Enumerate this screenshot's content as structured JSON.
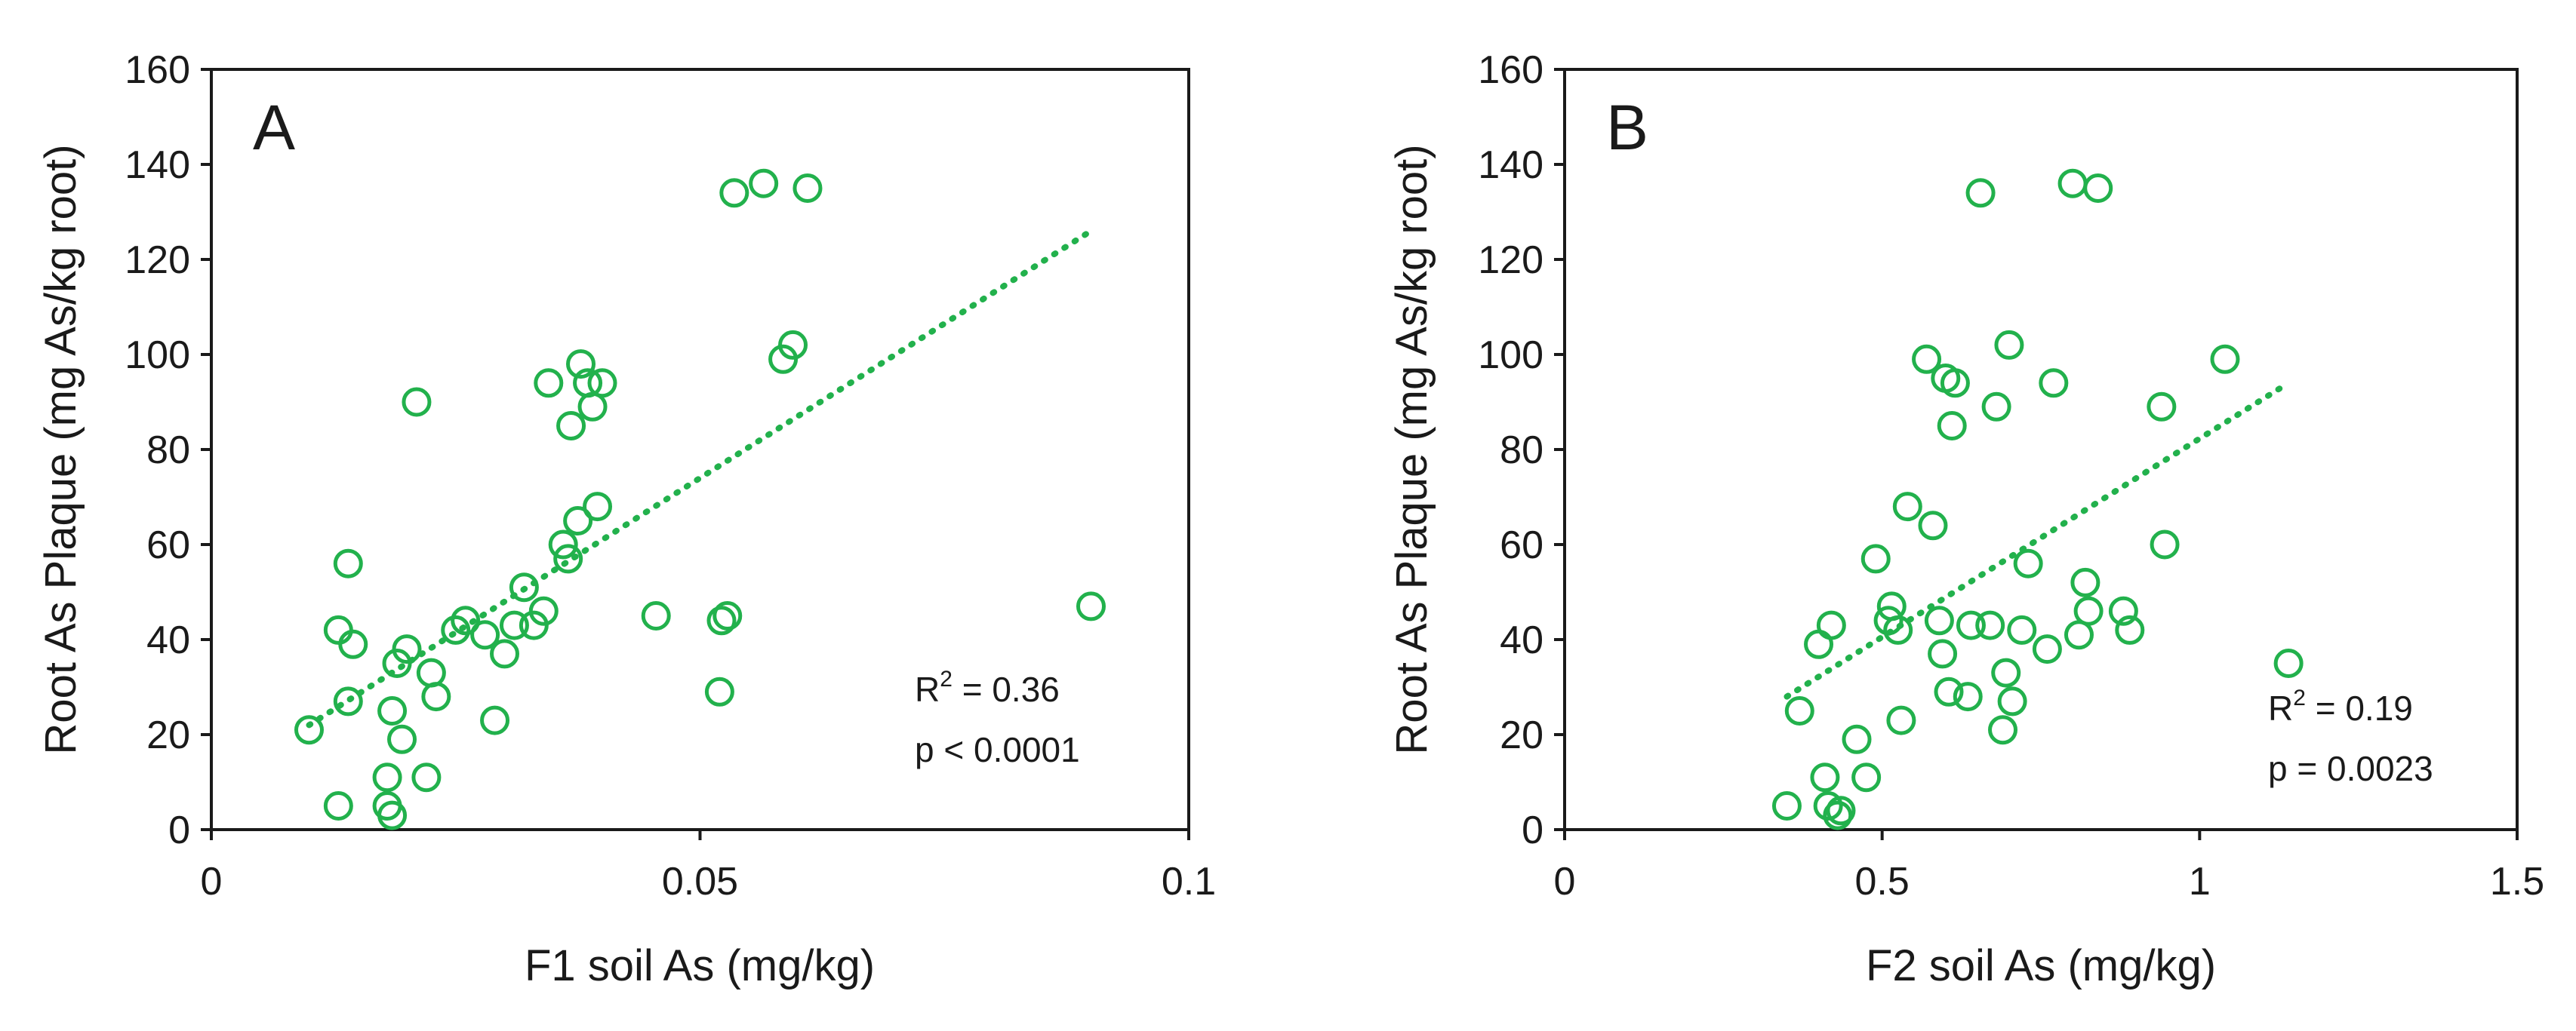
{
  "chart_data": [
    {
      "type": "scatter",
      "panel_label": "A",
      "xlabel": "F1 soil As (mg/kg)",
      "ylabel": "Root As Plaque (mg As/kg root)",
      "xlim": [
        0,
        0.1
      ],
      "ylim": [
        0,
        160
      ],
      "xticks": [
        0,
        0.05,
        0.1
      ],
      "xtick_labels": [
        "0",
        "0.05",
        "0.1"
      ],
      "yticks": [
        0,
        20,
        40,
        60,
        80,
        100,
        120,
        140,
        160
      ],
      "ytick_labels": [
        "0",
        "20",
        "40",
        "60",
        "80",
        "100",
        "120",
        "140",
        "160"
      ],
      "grid": false,
      "marker_color": "#22b14c",
      "points": [
        [
          0.01,
          21
        ],
        [
          0.013,
          42
        ],
        [
          0.013,
          5
        ],
        [
          0.014,
          27
        ],
        [
          0.014,
          56
        ],
        [
          0.0145,
          39
        ],
        [
          0.018,
          11
        ],
        [
          0.018,
          5
        ],
        [
          0.0185,
          3
        ],
        [
          0.0185,
          25
        ],
        [
          0.019,
          35
        ],
        [
          0.0195,
          19
        ],
        [
          0.02,
          38
        ],
        [
          0.021,
          90
        ],
        [
          0.022,
          11
        ],
        [
          0.0225,
          33
        ],
        [
          0.023,
          28
        ],
        [
          0.025,
          42
        ],
        [
          0.026,
          44
        ],
        [
          0.028,
          41
        ],
        [
          0.029,
          23
        ],
        [
          0.03,
          37
        ],
        [
          0.031,
          43
        ],
        [
          0.032,
          51
        ],
        [
          0.033,
          43
        ],
        [
          0.034,
          46
        ],
        [
          0.0345,
          94
        ],
        [
          0.036,
          60
        ],
        [
          0.0365,
          57
        ],
        [
          0.0368,
          85
        ],
        [
          0.0375,
          65
        ],
        [
          0.0378,
          98
        ],
        [
          0.0385,
          94
        ],
        [
          0.039,
          89
        ],
        [
          0.0395,
          68
        ],
        [
          0.04,
          94
        ],
        [
          0.0455,
          45
        ],
        [
          0.052,
          29
        ],
        [
          0.0522,
          44
        ],
        [
          0.0528,
          45
        ],
        [
          0.0535,
          134
        ],
        [
          0.0565,
          136
        ],
        [
          0.0585,
          99
        ],
        [
          0.0595,
          102
        ],
        [
          0.061,
          135
        ],
        [
          0.09,
          47
        ]
      ],
      "trendline": {
        "x": [
          0.01,
          0.09
        ],
        "y": [
          22,
          126
        ],
        "style": "dotted"
      },
      "annotations": [
        "R",
        "2",
        " = 0.36",
        "p < 0.0001"
      ]
    },
    {
      "type": "scatter",
      "panel_label": "B",
      "xlabel": "F2 soil As (mg/kg)",
      "ylabel": "Root As Plaque (mg As/kg root)",
      "xlim": [
        0,
        1.5
      ],
      "ylim": [
        0,
        160
      ],
      "xticks": [
        0,
        0.5,
        1,
        1.5
      ],
      "xtick_labels": [
        "0",
        "0.5",
        "1",
        "1.5"
      ],
      "yticks": [
        0,
        20,
        40,
        60,
        80,
        100,
        120,
        140,
        160
      ],
      "ytick_labels": [
        "0",
        "20",
        "40",
        "60",
        "80",
        "100",
        "120",
        "140",
        "160"
      ],
      "grid": false,
      "marker_color": "#22b14c",
      "points": [
        [
          0.35,
          5
        ],
        [
          0.37,
          25
        ],
        [
          0.4,
          39
        ],
        [
          0.41,
          11
        ],
        [
          0.415,
          5
        ],
        [
          0.42,
          43
        ],
        [
          0.43,
          3
        ],
        [
          0.435,
          4
        ],
        [
          0.46,
          19
        ],
        [
          0.475,
          11
        ],
        [
          0.49,
          57
        ],
        [
          0.51,
          44
        ],
        [
          0.515,
          47
        ],
        [
          0.525,
          42
        ],
        [
          0.53,
          23
        ],
        [
          0.54,
          68
        ],
        [
          0.57,
          99
        ],
        [
          0.58,
          64
        ],
        [
          0.59,
          44
        ],
        [
          0.595,
          37
        ],
        [
          0.6,
          95
        ],
        [
          0.605,
          29
        ],
        [
          0.61,
          85
        ],
        [
          0.615,
          94
        ],
        [
          0.635,
          28
        ],
        [
          0.64,
          43
        ],
        [
          0.655,
          134
        ],
        [
          0.67,
          43
        ],
        [
          0.68,
          89
        ],
        [
          0.69,
          21
        ],
        [
          0.695,
          33
        ],
        [
          0.7,
          102
        ],
        [
          0.705,
          27
        ],
        [
          0.72,
          42
        ],
        [
          0.73,
          56
        ],
        [
          0.76,
          38
        ],
        [
          0.77,
          94
        ],
        [
          0.8,
          136
        ],
        [
          0.81,
          41
        ],
        [
          0.82,
          52
        ],
        [
          0.825,
          46
        ],
        [
          0.84,
          135
        ],
        [
          0.88,
          46
        ],
        [
          0.89,
          42
        ],
        [
          0.94,
          89
        ],
        [
          0.945,
          60
        ],
        [
          1.04,
          99
        ],
        [
          1.14,
          35
        ]
      ],
      "trendline": {
        "x": [
          0.35,
          1.14
        ],
        "y": [
          28,
          94
        ],
        "style": "dotted"
      },
      "annotations": [
        "R",
        "2",
        " = 0.19",
        "p = 0.0023"
      ]
    }
  ]
}
